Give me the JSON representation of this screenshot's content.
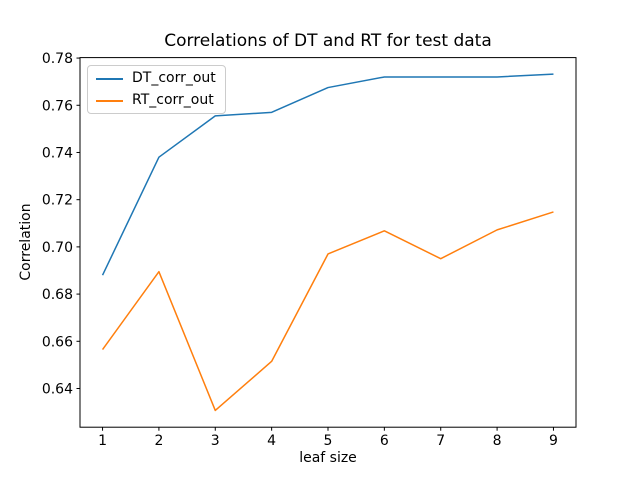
{
  "chart_data": {
    "type": "line",
    "title": "Correlations of DT and RT for test data",
    "xlabel": "leaf size",
    "ylabel": "Correlation",
    "x": [
      1,
      2,
      3,
      4,
      5,
      6,
      7,
      8,
      9
    ],
    "series": [
      {
        "name": "DT_corr_out",
        "color": "#1f77b4",
        "values": [
          0.688,
          0.738,
          0.7555,
          0.757,
          0.7675,
          0.772,
          0.772,
          0.772,
          0.7732
        ]
      },
      {
        "name": "RT_corr_out",
        "color": "#ff7f0e",
        "values": [
          0.6565,
          0.6895,
          0.6307,
          0.6515,
          0.697,
          0.7068,
          0.695,
          0.7072,
          0.7148
        ]
      }
    ],
    "xlim": [
      0.6,
      9.4
    ],
    "ylim": [
      0.6236,
      0.7802
    ],
    "xticks": [
      1,
      2,
      3,
      4,
      5,
      6,
      7,
      8,
      9
    ],
    "yticks": [
      0.64,
      0.66,
      0.68,
      0.7,
      0.72,
      0.74,
      0.76,
      0.78
    ],
    "ytick_labels": [
      "0.64",
      "0.66",
      "0.68",
      "0.70",
      "0.72",
      "0.74",
      "0.76",
      "0.78"
    ],
    "grid": false,
    "legend_position": "upper left",
    "background": "#ffffff",
    "axis_color": "#000000"
  }
}
